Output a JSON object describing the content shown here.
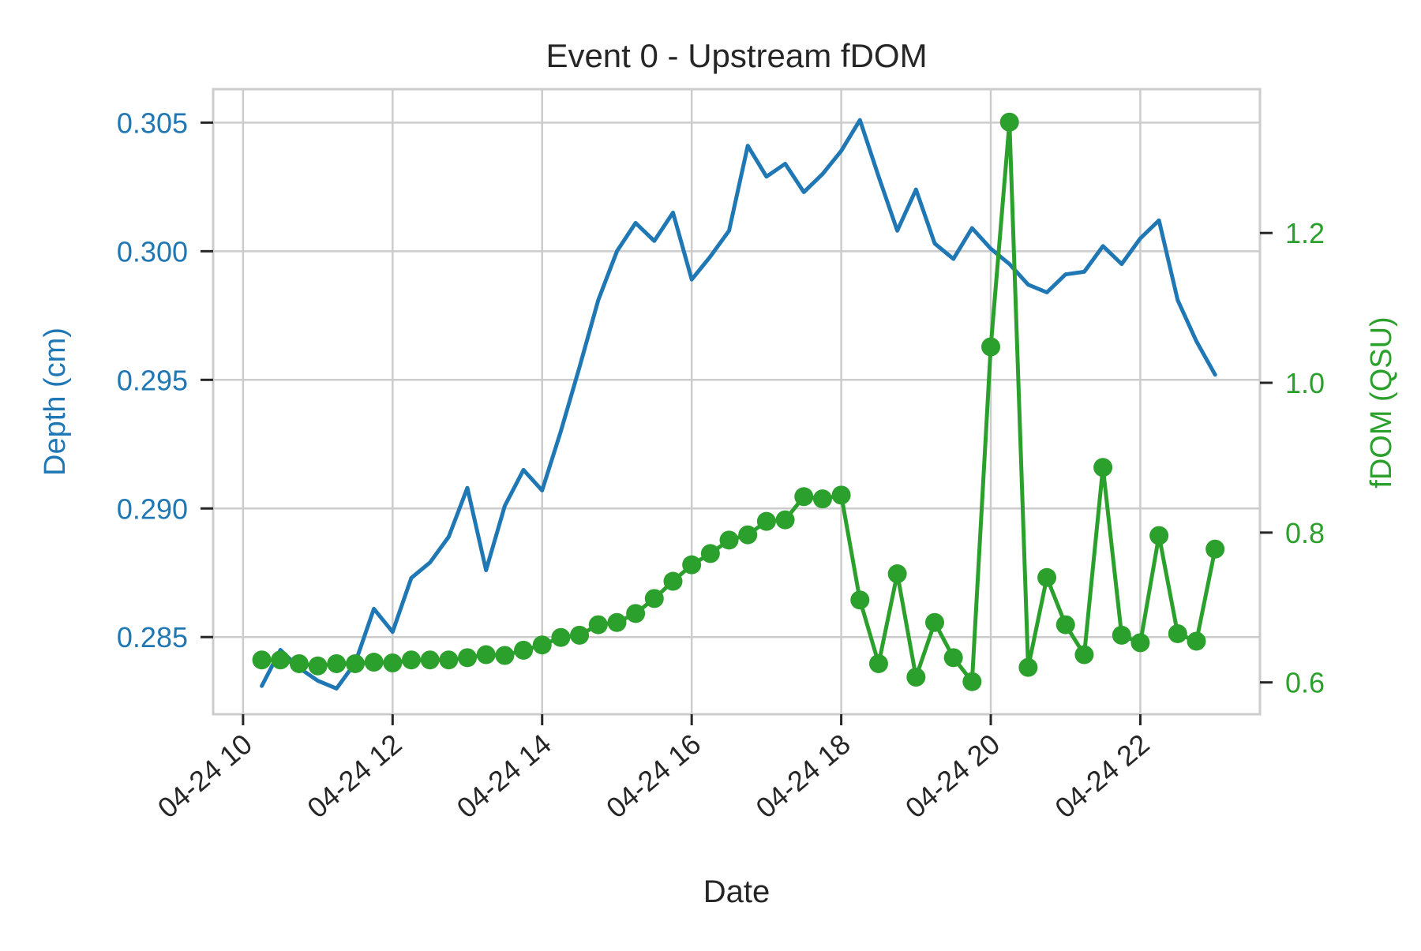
{
  "chart_data": {
    "type": "line",
    "title": "Event 0 - Upstream fDOM",
    "xlabel": "Date",
    "x_tick_labels": [
      "04-24 10",
      "04-24 12",
      "04-24 14",
      "04-24 16",
      "04-24 18",
      "04-24 20",
      "04-24 22"
    ],
    "x_tick_hours": [
      10,
      12,
      14,
      16,
      18,
      20,
      22
    ],
    "xlim_hours": [
      9.6,
      23.6
    ],
    "y_left": {
      "label": "Depth (cm)",
      "ylim": [
        0.282,
        0.3063
      ],
      "ticks": [
        0.285,
        0.29,
        0.295,
        0.3,
        0.305
      ],
      "tick_labels": [
        "0.285",
        "0.290",
        "0.295",
        "0.300",
        "0.305"
      ],
      "color": "#1f77b4"
    },
    "y_right": {
      "label": "fDOM (QSU)",
      "ylim": [
        0.5575,
        1.392
      ],
      "ticks": [
        0.6,
        0.8,
        1.0,
        1.2
      ],
      "tick_labels": [
        "0.6",
        "0.8",
        "1.0",
        "1.2"
      ],
      "color": "#2ca02c"
    },
    "grid": true,
    "x_hours": [
      10.25,
      10.5,
      10.75,
      11.0,
      11.25,
      11.5,
      11.75,
      12.0,
      12.25,
      12.5,
      12.75,
      13.0,
      13.25,
      13.5,
      13.75,
      14.0,
      14.25,
      14.5,
      14.75,
      15.0,
      15.25,
      15.5,
      15.75,
      16.0,
      16.25,
      16.5,
      16.75,
      17.0,
      17.25,
      17.5,
      17.75,
      18.0,
      18.25,
      18.5,
      18.75,
      19.0,
      19.25,
      19.5,
      19.75,
      20.0,
      20.25,
      20.5,
      20.75,
      21.0,
      21.25,
      21.5,
      21.75,
      22.0,
      22.25,
      22.5,
      22.75,
      23.0
    ],
    "series": [
      {
        "name": "Depth (cm)",
        "axis": "left",
        "color": "#1f77b4",
        "markers": false,
        "values": [
          0.2831,
          0.2845,
          0.2838,
          0.2833,
          0.283,
          0.284,
          0.2861,
          0.2852,
          0.2873,
          0.2879,
          0.2889,
          0.2908,
          0.2876,
          0.2901,
          0.2915,
          0.2907,
          0.293,
          0.2955,
          0.2981,
          0.3,
          0.3011,
          0.3004,
          0.3015,
          0.2989,
          0.2998,
          0.3008,
          0.3041,
          0.3029,
          0.3034,
          0.3023,
          0.303,
          0.3039,
          0.3051,
          0.3029,
          0.3008,
          0.3024,
          0.3003,
          0.2997,
          0.3009,
          0.3001,
          0.2995,
          0.2987,
          0.2984,
          0.2991,
          0.2992,
          0.3002,
          0.2995,
          0.3005,
          0.3012,
          0.2981,
          0.2965,
          0.2952
        ]
      },
      {
        "name": "fDOM (QSU)",
        "axis": "right",
        "color": "#2ca02c",
        "markers": true,
        "values": [
          0.63,
          0.63,
          0.625,
          0.622,
          0.625,
          0.625,
          0.627,
          0.626,
          0.63,
          0.63,
          0.63,
          0.633,
          0.637,
          0.636,
          0.643,
          0.65,
          0.66,
          0.663,
          0.677,
          0.68,
          0.692,
          0.712,
          0.735,
          0.757,
          0.772,
          0.79,
          0.797,
          0.815,
          0.817,
          0.848,
          0.845,
          0.85,
          0.71,
          0.625,
          0.745,
          0.607,
          0.68,
          0.633,
          0.601,
          1.048,
          1.348,
          0.62,
          0.74,
          0.677,
          0.637,
          0.887,
          0.663,
          0.653,
          0.796,
          0.665,
          0.655,
          0.778
        ]
      }
    ]
  }
}
